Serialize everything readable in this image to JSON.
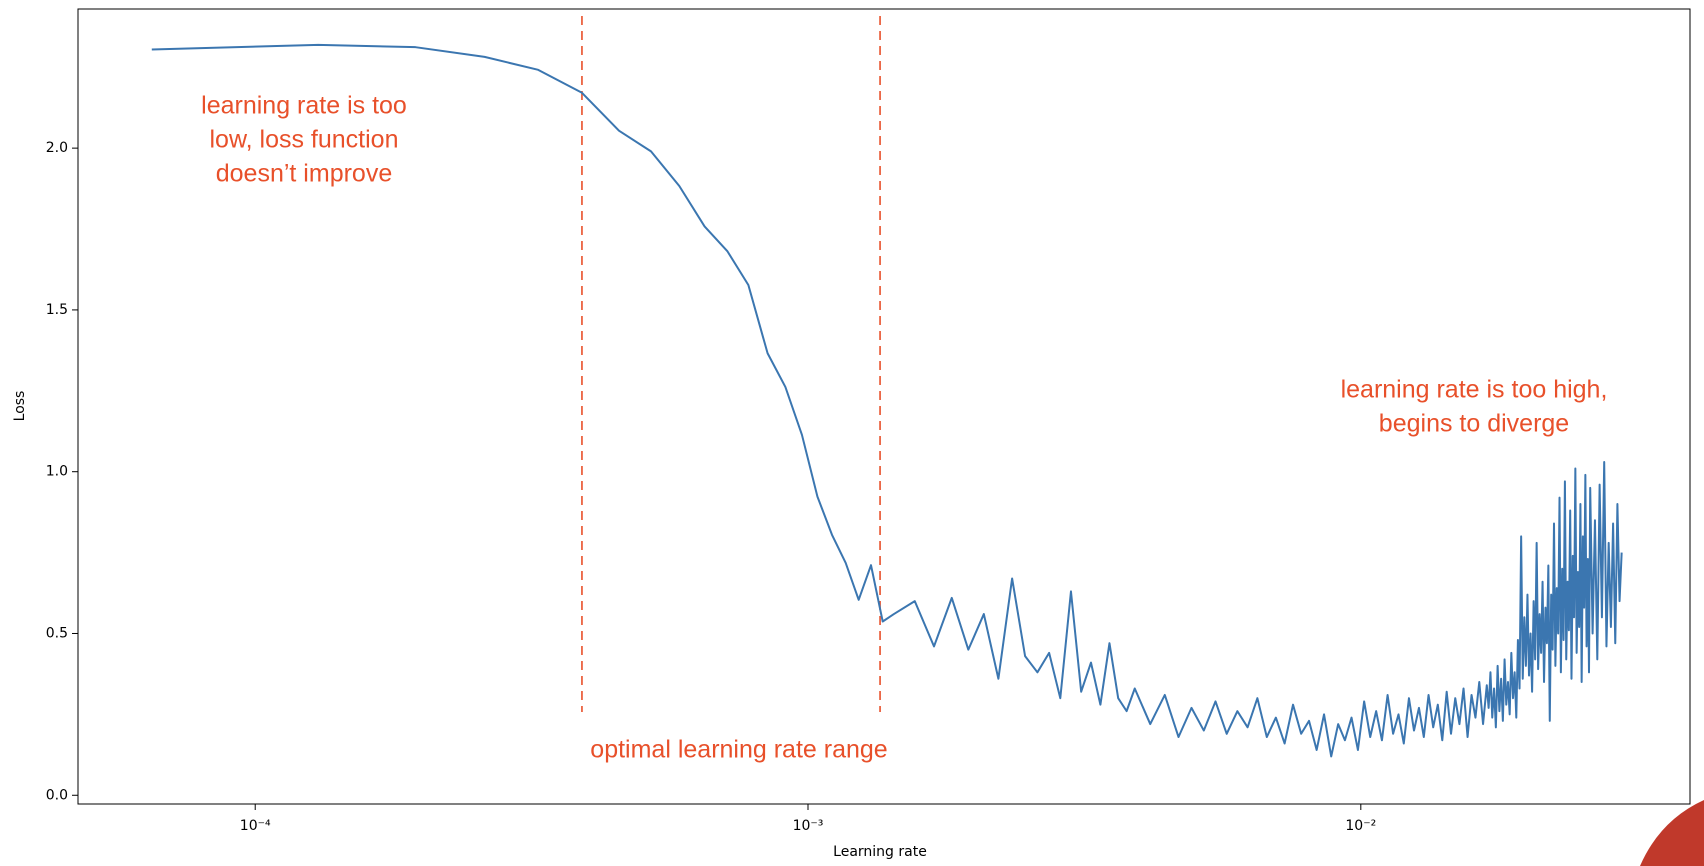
{
  "chart_data": {
    "type": "line",
    "x_label": "Learning rate",
    "y_label": "Loss",
    "xscale": "log",
    "xlim": [
      4.78e-05,
      0.0394
    ],
    "ylim": [
      -0.027,
      2.43
    ],
    "xticks": [
      {
        "value": 0.0001,
        "label": "10⁻⁴"
      },
      {
        "value": 0.001,
        "label": "10⁻³"
      },
      {
        "value": 0.01,
        "label": "10⁻²"
      }
    ],
    "yticks": [
      {
        "value": 0,
        "label": "0.0"
      },
      0.5,
      {
        "value": 1,
        "label": "1.0"
      },
      1.5,
      {
        "value": 2,
        "label": "2.0"
      }
    ],
    "color": "#3b76b0",
    "x": [
      6.5e-05,
      0.00013,
      0.000195,
      0.00026,
      0.000325,
      0.00039,
      0.000455,
      0.00052,
      0.000585,
      0.00065,
      0.000715,
      0.00078,
      0.000845,
      0.00091,
      0.000975,
      0.00104,
      0.001105,
      0.00117,
      0.001235,
      0.0013,
      0.001365,
      0.00143,
      0.00156,
      0.00169,
      0.00182,
      0.00195,
      0.00208,
      0.00221,
      0.00234,
      0.00247,
      0.0026,
      0.00273,
      0.00286,
      0.00299,
      0.00312,
      0.00325,
      0.00338,
      0.00351,
      0.00364,
      0.00377,
      0.0039,
      0.00416,
      0.00442,
      0.00468,
      0.00494,
      0.0052,
      0.00546,
      0.00572,
      0.00598,
      0.00624,
      0.0065,
      0.00676,
      0.00702,
      0.00728,
      0.00754,
      0.0078,
      0.00806,
      0.00832,
      0.00858,
      0.00884,
      0.0091,
      0.00936,
      0.00962,
      0.00988,
      0.01014,
      0.0104,
      0.01066,
      0.01092,
      0.01118,
      0.01144,
      0.0117,
      0.01196,
      0.01222,
      0.01248,
      0.01274,
      0.013,
      0.01326,
      0.01352,
      0.01378,
      0.01404,
      0.0143,
      0.01456,
      0.01482,
      0.01508,
      0.01534,
      0.0156,
      0.01586,
      0.01612,
      0.01638,
      0.01664,
      0.0169,
      0.01703,
      0.01716,
      0.01729,
      0.01742,
      0.01755,
      0.01768,
      0.01781,
      0.01794,
      0.01807,
      0.0182,
      0.01833,
      0.01846,
      0.01859,
      0.01872,
      0.01885,
      0.01898,
      0.01911,
      0.01924,
      0.01937,
      0.0195,
      0.01963,
      0.01976,
      0.01989,
      0.02002,
      0.02015,
      0.02028,
      0.02041,
      0.02054,
      0.02067,
      0.0208,
      0.02093,
      0.02106,
      0.02119,
      0.02132,
      0.02145,
      0.02158,
      0.02171,
      0.02184,
      0.02197,
      0.0221,
      0.02223,
      0.02236,
      0.02249,
      0.02262,
      0.02275,
      0.02288,
      0.02301,
      0.02314,
      0.02327,
      0.0234,
      0.02353,
      0.02366,
      0.02379,
      0.02392,
      0.02405,
      0.02418,
      0.02431,
      0.02444,
      0.02457,
      0.0247,
      0.02483,
      0.02496,
      0.02509,
      0.02522,
      0.02535,
      0.02548,
      0.02561,
      0.02574,
      0.02587,
      0.026,
      0.02626,
      0.02652,
      0.02678,
      0.02704,
      0.0273,
      0.02756,
      0.02782,
      0.02808,
      0.02834,
      0.0286,
      0.02886,
      0.02912,
      0.02938,
      0.02964
    ],
    "values": [
      2.305,
      2.319,
      2.312,
      2.282,
      2.242,
      2.171,
      2.054,
      1.99,
      1.883,
      1.758,
      1.681,
      1.577,
      1.366,
      1.262,
      1.114,
      0.923,
      0.805,
      0.718,
      0.604,
      0.711,
      0.537,
      0.56,
      0.6,
      0.46,
      0.61,
      0.45,
      0.56,
      0.36,
      0.67,
      0.43,
      0.38,
      0.44,
      0.3,
      0.63,
      0.32,
      0.41,
      0.28,
      0.47,
      0.3,
      0.26,
      0.33,
      0.22,
      0.31,
      0.18,
      0.27,
      0.2,
      0.29,
      0.19,
      0.26,
      0.21,
      0.3,
      0.18,
      0.24,
      0.16,
      0.28,
      0.19,
      0.23,
      0.14,
      0.25,
      0.12,
      0.22,
      0.17,
      0.24,
      0.14,
      0.29,
      0.18,
      0.26,
      0.17,
      0.31,
      0.19,
      0.25,
      0.16,
      0.3,
      0.2,
      0.27,
      0.18,
      0.31,
      0.21,
      0.28,
      0.17,
      0.32,
      0.19,
      0.3,
      0.22,
      0.33,
      0.18,
      0.31,
      0.24,
      0.35,
      0.22,
      0.34,
      0.27,
      0.38,
      0.24,
      0.33,
      0.21,
      0.4,
      0.26,
      0.36,
      0.23,
      0.42,
      0.28,
      0.35,
      0.25,
      0.44,
      0.3,
      0.38,
      0.24,
      0.48,
      0.33,
      0.8,
      0.36,
      0.55,
      0.4,
      0.62,
      0.37,
      0.5,
      0.32,
      0.6,
      0.42,
      0.78,
      0.39,
      0.56,
      0.44,
      0.66,
      0.35,
      0.58,
      0.47,
      0.71,
      0.23,
      0.62,
      0.45,
      0.84,
      0.4,
      0.64,
      0.5,
      0.92,
      0.38,
      0.7,
      0.48,
      0.97,
      0.42,
      0.66,
      0.51,
      0.88,
      0.36,
      0.74,
      0.55,
      1.01,
      0.44,
      0.69,
      0.52,
      0.9,
      0.35,
      0.8,
      0.58,
      0.99,
      0.46,
      0.73,
      0.38,
      0.95,
      0.5,
      0.85,
      0.42,
      0.96,
      0.55,
      1.03,
      0.46,
      0.78,
      0.52,
      0.84,
      0.47,
      0.9,
      0.6,
      0.75
    ],
    "vlines": [
      {
        "value": 0.00039,
        "color": "#e8502a"
      },
      {
        "value": 0.00135,
        "color": "#e8502a"
      }
    ],
    "annotations": [
      {
        "lines": [
          "learning rate is too",
          "low, loss function",
          "doesn’t improve"
        ],
        "color": "#e8502a"
      },
      {
        "lines": [
          "optimal learning rate range"
        ],
        "color": "#e8502a"
      },
      {
        "lines": [
          "learning rate is too high,",
          "begins to diverge"
        ],
        "color": "#e8502a"
      }
    ]
  }
}
